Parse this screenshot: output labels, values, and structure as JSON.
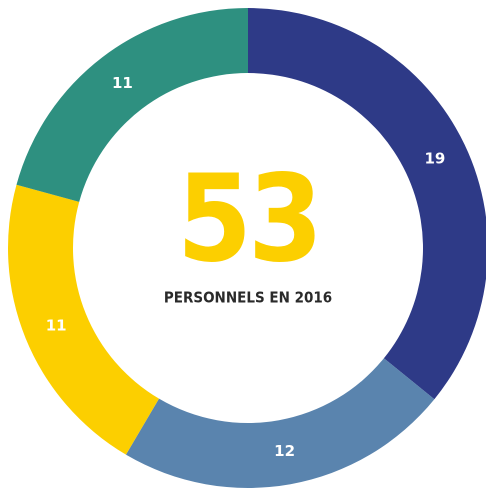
{
  "chart_data": {
    "type": "donut",
    "center_value": "53",
    "center_label": "PERSONNELS EN 2016",
    "values": [
      19,
      12,
      11,
      11
    ],
    "colors": [
      "#2e3a87",
      "#5a84ae",
      "#fccf00",
      "#2e9080"
    ]
  }
}
